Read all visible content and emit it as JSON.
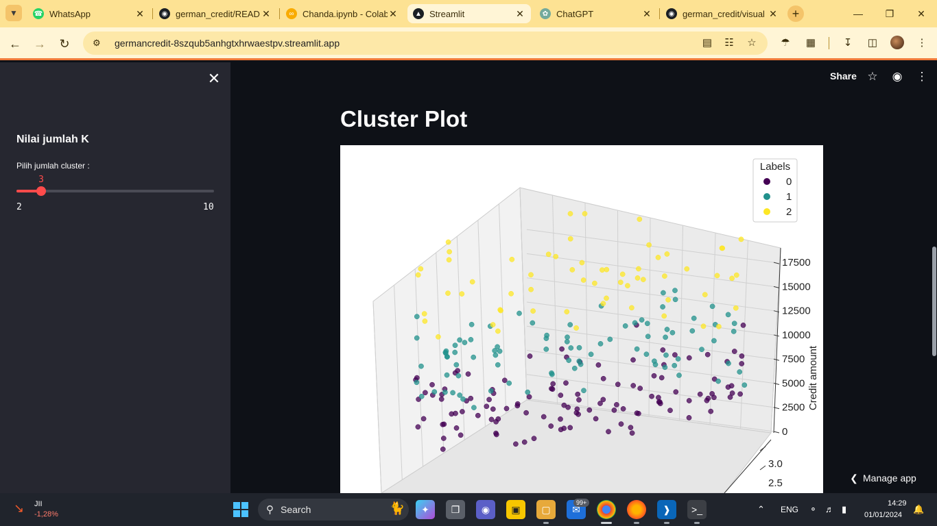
{
  "browser": {
    "tabs": [
      {
        "title": "WhatsApp",
        "icon": "whatsapp-icon",
        "color": "#25d366"
      },
      {
        "title": "german_credit/READI",
        "icon": "github-icon",
        "color": "#1b1f24"
      },
      {
        "title": "Chanda.ipynb - Colab",
        "icon": "colab-icon",
        "color": "#f9ab00"
      },
      {
        "title": "Streamlit",
        "icon": "streamlit-icon",
        "color": "#1b1f24"
      },
      {
        "title": "ChatGPT",
        "icon": "chatgpt-icon",
        "color": "#74aa9c"
      },
      {
        "title": "german_credit/visual",
        "icon": "github-icon",
        "color": "#1b1f24"
      }
    ],
    "url": "germancredit-8szqub5anhgtxhrwaestpv.streamlit.app"
  },
  "sidebar": {
    "title": "Nilai jumlah K",
    "slider_label": "Pilih jumlah cluster :",
    "slider_value": "3",
    "slider_min": "2",
    "slider_max": "10",
    "slider_min_num": 2,
    "slider_max_num": 10,
    "slider_value_num": 3
  },
  "header": {
    "share_label": "Share"
  },
  "main": {
    "page_title": "Cluster Plot",
    "manage_label": "Manage app"
  },
  "chart_data": {
    "type": "scatter",
    "title": "",
    "legend_title": "Labels",
    "legend_position": "top-right",
    "zlabel": "Credit amount",
    "z_ticks": [
      "0",
      "2500",
      "5000",
      "7500",
      "10000",
      "12500",
      "15000",
      "17500"
    ],
    "zlim": [
      0,
      19000
    ],
    "y_ticks": [
      "3.0",
      "2.5"
    ],
    "grid": true,
    "series": [
      {
        "name": "0",
        "color": "#440154",
        "credit_amount": [
          1169,
          2096,
          1500,
          2500,
          3000,
          1800,
          4000,
          2200,
          1300,
          3500,
          5000,
          2800,
          1700,
          4500,
          3200,
          1100,
          2600,
          3900,
          6000,
          2000
        ]
      },
      {
        "name": "1",
        "color": "#21918c",
        "credit_amount": [
          6000,
          7500,
          8000,
          5500,
          9000,
          6500,
          10000,
          7000,
          8500,
          11000,
          5800,
          9500,
          6200,
          7200,
          10500
        ]
      },
      {
        "name": "2",
        "color": "#fde725",
        "credit_amount": [
          12000,
          14000,
          15000,
          16000,
          18000,
          13000,
          15500,
          17000,
          12500,
          14500
        ]
      }
    ]
  },
  "taskbar": {
    "stock_name": "JII",
    "stock_change": "-1,28%",
    "search_label": "Search",
    "mail_badge": "99+",
    "lang": "ENG",
    "time": "14:29",
    "date": "01/01/2024"
  }
}
